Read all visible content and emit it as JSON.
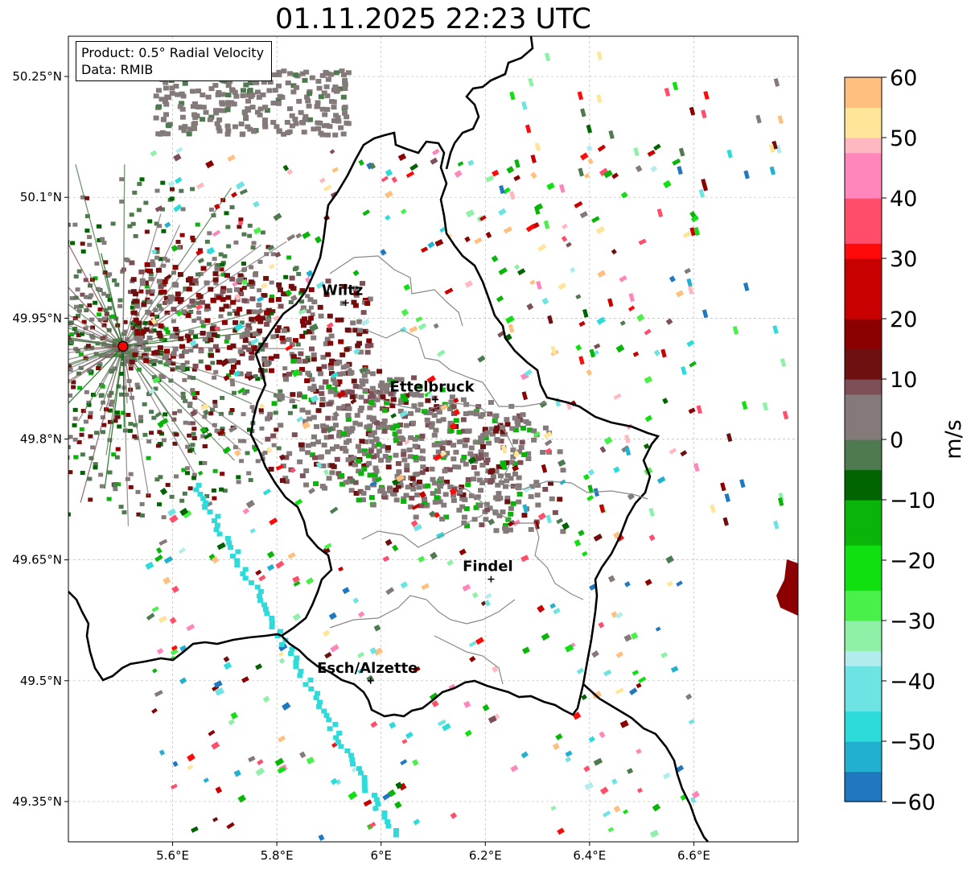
{
  "title": "01.11.2025 22:23 UTC",
  "info": {
    "product": "Product: 0.5° Radial Velocity",
    "data": "Data: RMIB"
  },
  "map": {
    "lon_range": [
      5.4,
      6.8
    ],
    "lat_range": [
      49.3,
      50.3
    ],
    "lat_ticks": [
      {
        "value": 49.35,
        "label": "49.35°N"
      },
      {
        "value": 49.5,
        "label": "49.5°N"
      },
      {
        "value": 49.65,
        "label": "49.65°N"
      },
      {
        "value": 49.8,
        "label": "49.8°N"
      },
      {
        "value": 49.95,
        "label": "49.95°N"
      },
      {
        "value": 50.1,
        "label": "50.1°N"
      },
      {
        "value": 50.25,
        "label": "50.25°N"
      }
    ],
    "lon_ticks": [
      {
        "value": 5.6,
        "label": "5.6°E"
      },
      {
        "value": 5.8,
        "label": "5.8°E"
      },
      {
        "value": 6.0,
        "label": "6°E"
      },
      {
        "value": 6.2,
        "label": "6.2°E"
      },
      {
        "value": 6.4,
        "label": "6.4°E"
      },
      {
        "value": 6.6,
        "label": "6.6°E"
      }
    ],
    "grid": true,
    "radar_site": {
      "lon": 5.505,
      "lat": 49.915,
      "color": "#ff0000"
    },
    "cities": [
      {
        "name": "Wiltz",
        "lon": 5.932,
        "lat": 49.969
      },
      {
        "name": "Ettelbruck",
        "lon": 6.104,
        "lat": 49.849
      },
      {
        "name": "Findel",
        "lon": 6.211,
        "lat": 49.626
      },
      {
        "name": "Esch/Alzette",
        "lon": 5.98,
        "lat": 49.5
      }
    ]
  },
  "colorbar": {
    "label": "m/s",
    "min": -60,
    "max": 60,
    "ticks": [
      {
        "value": 60,
        "label": "60"
      },
      {
        "value": 50,
        "label": "50"
      },
      {
        "value": 40,
        "label": "40"
      },
      {
        "value": 30,
        "label": "30"
      },
      {
        "value": 20,
        "label": "20"
      },
      {
        "value": 10,
        "label": "10"
      },
      {
        "value": 0,
        "label": "0"
      },
      {
        "value": -10,
        "label": "−10"
      },
      {
        "value": -20,
        "label": "−20"
      },
      {
        "value": -30,
        "label": "−30"
      },
      {
        "value": -40,
        "label": "−40"
      },
      {
        "value": -50,
        "label": "−50"
      },
      {
        "value": -60,
        "label": "−60"
      }
    ],
    "stops": [
      {
        "value": -60,
        "color": "#1f78c0"
      },
      {
        "value": -55,
        "color": "#22b0d0"
      },
      {
        "value": -50,
        "color": "#2ddbdb"
      },
      {
        "value": -45,
        "color": "#6ee3e3"
      },
      {
        "value": -38,
        "color": "#b3ecec"
      },
      {
        "value": -35,
        "color": "#8ff0a8"
      },
      {
        "value": -30,
        "color": "#4af04a"
      },
      {
        "value": -25,
        "color": "#10e010"
      },
      {
        "value": -18,
        "color": "#09b509"
      },
      {
        "value": -10,
        "color": "#006400"
      },
      {
        "value": -6,
        "color": "#4f7a4f"
      },
      {
        "value": 0,
        "color": "#857a7a"
      },
      {
        "value": 6,
        "color": "#7e4f56"
      },
      {
        "value": 9,
        "color": "#6e1010"
      },
      {
        "value": 15,
        "color": "#8b0000"
      },
      {
        "value": 20,
        "color": "#c80000"
      },
      {
        "value": 28,
        "color": "#ff0a0a"
      },
      {
        "value": 32,
        "color": "#ff4d6a"
      },
      {
        "value": 40,
        "color": "#ff85bb"
      },
      {
        "value": 46,
        "color": "#ffb8c0"
      },
      {
        "value": 50,
        "color": "#ffe59a"
      },
      {
        "value": 55,
        "color": "#ffbf7f"
      },
      {
        "value": 60,
        "color": "#ff9a4f"
      }
    ]
  }
}
